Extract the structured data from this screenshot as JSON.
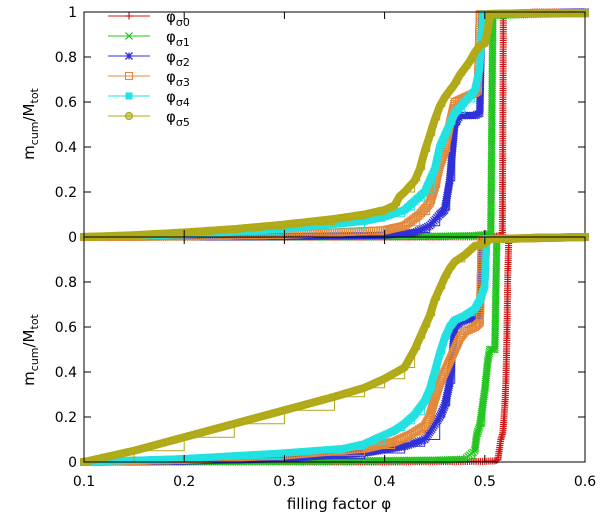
{
  "chart_data": {
    "type": "line",
    "xlabel": "filling factor φ",
    "ylabel_main": "m",
    "ylabel_sub1": "cum",
    "ylabel_sep": "/M",
    "ylabel_sub2": "tot",
    "xlim": [
      0.1,
      0.6
    ],
    "xticks": [
      0.1,
      0.2,
      0.3,
      0.4,
      0.5,
      0.6
    ],
    "xtick_labels": [
      "0.1",
      "0.2",
      "0.3",
      "0.4",
      "0.5",
      "0.6"
    ],
    "panels": [
      {
        "name": "top",
        "ylim": [
          0,
          1
        ],
        "yticks": [
          0,
          0.2,
          0.4,
          0.6,
          0.8,
          1
        ],
        "ytick_labels": [
          "0",
          "0.2",
          "0.4",
          "0.6",
          "0.8",
          "1"
        ],
        "series": [
          {
            "key": "s0",
            "points": [
              [
                0.1,
                0
              ],
              [
                0.3,
                0
              ],
              [
                0.45,
                0
              ],
              [
                0.5,
                0.001
              ],
              [
                0.51,
                0.003
              ],
              [
                0.515,
                0.006
              ],
              [
                0.5175,
                0.01
              ],
              [
                0.5185,
                0.99
              ],
              [
                0.55,
                1.0
              ],
              [
                0.6,
                1.0
              ]
            ]
          },
          {
            "key": "s1",
            "points": [
              [
                0.1,
                0
              ],
              [
                0.3,
                0.001
              ],
              [
                0.45,
                0.003
              ],
              [
                0.49,
                0.006
              ],
              [
                0.5,
                0.01
              ],
              [
                0.506,
                0.015
              ],
              [
                0.508,
                0.985
              ],
              [
                0.55,
                0.99
              ],
              [
                0.6,
                0.995
              ]
            ]
          },
          {
            "key": "s2",
            "points": [
              [
                0.1,
                0
              ],
              [
                0.3,
                0.002
              ],
              [
                0.4,
                0.008
              ],
              [
                0.43,
                0.02
              ],
              [
                0.445,
                0.05
              ],
              [
                0.455,
                0.1
              ],
              [
                0.46,
                0.12
              ],
              [
                0.465,
                0.25
              ],
              [
                0.47,
                0.5
              ],
              [
                0.475,
                0.54
              ],
              [
                0.48,
                0.54
              ],
              [
                0.49,
                0.54
              ],
              [
                0.495,
                0.55
              ],
              [
                0.497,
                0.99
              ],
              [
                0.55,
                0.995
              ],
              [
                0.6,
                1.0
              ]
            ]
          },
          {
            "key": "s3",
            "points": [
              [
                0.1,
                0
              ],
              [
                0.2,
                0.003
              ],
              [
                0.3,
                0.01
              ],
              [
                0.4,
                0.03
              ],
              [
                0.42,
                0.05
              ],
              [
                0.435,
                0.1
              ],
              [
                0.445,
                0.15
              ],
              [
                0.45,
                0.22
              ],
              [
                0.455,
                0.32
              ],
              [
                0.46,
                0.38
              ],
              [
                0.465,
                0.5
              ],
              [
                0.47,
                0.6
              ],
              [
                0.48,
                0.62
              ],
              [
                0.49,
                0.64
              ],
              [
                0.493,
                0.65
              ],
              [
                0.495,
                0.99
              ],
              [
                0.55,
                0.995
              ],
              [
                0.6,
                0.995
              ]
            ]
          },
          {
            "key": "s4",
            "points": [
              [
                0.1,
                0
              ],
              [
                0.2,
                0.01
              ],
              [
                0.3,
                0.035
              ],
              [
                0.38,
                0.07
              ],
              [
                0.4,
                0.09
              ],
              [
                0.42,
                0.12
              ],
              [
                0.43,
                0.16
              ],
              [
                0.44,
                0.2
              ],
              [
                0.45,
                0.3
              ],
              [
                0.455,
                0.4
              ],
              [
                0.46,
                0.45
              ],
              [
                0.465,
                0.5
              ],
              [
                0.47,
                0.55
              ],
              [
                0.48,
                0.6
              ],
              [
                0.49,
                0.65
              ],
              [
                0.495,
                0.75
              ],
              [
                0.498,
                0.99
              ],
              [
                0.55,
                0.995
              ],
              [
                0.6,
                0.995
              ]
            ]
          },
          {
            "key": "s5",
            "points": [
              [
                0.1,
                0
              ],
              [
                0.15,
                0.008
              ],
              [
                0.2,
                0.02
              ],
              [
                0.25,
                0.035
              ],
              [
                0.3,
                0.055
              ],
              [
                0.35,
                0.08
              ],
              [
                0.38,
                0.1
              ],
              [
                0.4,
                0.12
              ],
              [
                0.41,
                0.14
              ],
              [
                0.415,
                0.18
              ],
              [
                0.42,
                0.2
              ],
              [
                0.43,
                0.25
              ],
              [
                0.435,
                0.3
              ],
              [
                0.44,
                0.38
              ],
              [
                0.445,
                0.45
              ],
              [
                0.45,
                0.52
              ],
              [
                0.455,
                0.58
              ],
              [
                0.46,
                0.62
              ],
              [
                0.465,
                0.65
              ],
              [
                0.47,
                0.68
              ],
              [
                0.475,
                0.72
              ],
              [
                0.48,
                0.75
              ],
              [
                0.485,
                0.78
              ],
              [
                0.49,
                0.82
              ],
              [
                0.495,
                0.85
              ],
              [
                0.5,
                0.86
              ],
              [
                0.503,
                0.92
              ],
              [
                0.505,
                0.99
              ],
              [
                0.55,
                0.995
              ],
              [
                0.6,
                0.995
              ]
            ]
          }
        ]
      },
      {
        "name": "bottom",
        "ylim": [
          0,
          1
        ],
        "yticks": [
          0,
          0.2,
          0.4,
          0.6,
          0.8
        ],
        "ytick_labels": [
          "0",
          "0.2",
          "0.4",
          "0.6",
          "0.8"
        ],
        "series": [
          {
            "key": "s0",
            "points": [
              [
                0.1,
                0
              ],
              [
                0.4,
                0
              ],
              [
                0.5,
                0.003
              ],
              [
                0.51,
                0.005
              ],
              [
                0.513,
                0.01
              ],
              [
                0.516,
                0.1
              ],
              [
                0.518,
                0.13
              ],
              [
                0.52,
                0.25
              ],
              [
                0.521,
                0.35
              ],
              [
                0.522,
                0.55
              ],
              [
                0.523,
                0.85
              ],
              [
                0.524,
                0.99
              ],
              [
                0.55,
                1.0
              ],
              [
                0.6,
                1.0
              ]
            ]
          },
          {
            "key": "s1",
            "points": [
              [
                0.1,
                0
              ],
              [
                0.3,
                0.002
              ],
              [
                0.45,
                0.008
              ],
              [
                0.48,
                0.012
              ],
              [
                0.49,
                0.05
              ],
              [
                0.492,
                0.12
              ],
              [
                0.495,
                0.16
              ],
              [
                0.5,
                0.32
              ],
              [
                0.503,
                0.45
              ],
              [
                0.505,
                0.5
              ],
              [
                0.51,
                0.5
              ],
              [
                0.512,
                0.99
              ],
              [
                0.55,
                0.995
              ],
              [
                0.6,
                1.0
              ]
            ]
          },
          {
            "key": "s2",
            "points": [
              [
                0.1,
                0
              ],
              [
                0.2,
                0.004
              ],
              [
                0.3,
                0.015
              ],
              [
                0.38,
                0.04
              ],
              [
                0.42,
                0.07
              ],
              [
                0.44,
                0.1
              ],
              [
                0.455,
                0.2
              ],
              [
                0.46,
                0.25
              ],
              [
                0.465,
                0.35
              ],
              [
                0.47,
                0.6
              ],
              [
                0.475,
                0.62
              ],
              [
                0.48,
                0.63
              ],
              [
                0.49,
                0.64
              ],
              [
                0.495,
                0.65
              ],
              [
                0.497,
                0.99
              ],
              [
                0.55,
                0.995
              ],
              [
                0.6,
                1.0
              ]
            ]
          },
          {
            "key": "s3",
            "points": [
              [
                0.1,
                0
              ],
              [
                0.2,
                0.01
              ],
              [
                0.3,
                0.03
              ],
              [
                0.38,
                0.06
              ],
              [
                0.41,
                0.09
              ],
              [
                0.425,
                0.12
              ],
              [
                0.44,
                0.16
              ],
              [
                0.445,
                0.2
              ],
              [
                0.45,
                0.28
              ],
              [
                0.455,
                0.35
              ],
              [
                0.46,
                0.4
              ],
              [
                0.465,
                0.45
              ],
              [
                0.47,
                0.5
              ],
              [
                0.475,
                0.55
              ],
              [
                0.48,
                0.58
              ],
              [
                0.49,
                0.6
              ],
              [
                0.495,
                0.62
              ],
              [
                0.497,
                0.99
              ],
              [
                0.55,
                0.995
              ],
              [
                0.6,
                1.0
              ]
            ]
          },
          {
            "key": "s4",
            "points": [
              [
                0.1,
                0
              ],
              [
                0.2,
                0.015
              ],
              [
                0.3,
                0.04
              ],
              [
                0.36,
                0.06
              ],
              [
                0.38,
                0.08
              ],
              [
                0.4,
                0.12
              ],
              [
                0.41,
                0.14
              ],
              [
                0.42,
                0.17
              ],
              [
                0.43,
                0.21
              ],
              [
                0.44,
                0.27
              ],
              [
                0.445,
                0.32
              ],
              [
                0.45,
                0.4
              ],
              [
                0.455,
                0.48
              ],
              [
                0.46,
                0.55
              ],
              [
                0.465,
                0.6
              ],
              [
                0.47,
                0.63
              ],
              [
                0.48,
                0.65
              ],
              [
                0.49,
                0.68
              ],
              [
                0.495,
                0.72
              ],
              [
                0.5,
                0.78
              ],
              [
                0.502,
                0.99
              ],
              [
                0.55,
                0.995
              ],
              [
                0.6,
                1.0
              ]
            ]
          },
          {
            "key": "s5",
            "points": [
              [
                0.1,
                0
              ],
              [
                0.15,
                0.05
              ],
              [
                0.2,
                0.11
              ],
              [
                0.25,
                0.17
              ],
              [
                0.3,
                0.23
              ],
              [
                0.35,
                0.29
              ],
              [
                0.38,
                0.33
              ],
              [
                0.4,
                0.37
              ],
              [
                0.42,
                0.42
              ],
              [
                0.43,
                0.5
              ],
              [
                0.435,
                0.55
              ],
              [
                0.44,
                0.6
              ],
              [
                0.445,
                0.65
              ],
              [
                0.45,
                0.72
              ],
              [
                0.455,
                0.77
              ],
              [
                0.46,
                0.82
              ],
              [
                0.465,
                0.86
              ],
              [
                0.47,
                0.89
              ],
              [
                0.48,
                0.92
              ],
              [
                0.485,
                0.94
              ],
              [
                0.49,
                0.96
              ],
              [
                0.5,
                0.97
              ],
              [
                0.505,
                0.99
              ],
              [
                0.55,
                0.995
              ],
              [
                0.6,
                1.0
              ]
            ]
          }
        ]
      }
    ],
    "legend_position": "top-left",
    "legend": [
      {
        "key": "s0",
        "label": "φ",
        "sub": "σ0",
        "color": "#d41818",
        "marker": "plus"
      },
      {
        "key": "s1",
        "label": "φ",
        "sub": "σ1",
        "color": "#22c41e",
        "marker": "cross"
      },
      {
        "key": "s2",
        "label": "φ",
        "sub": "σ2",
        "color": "#3030d8",
        "marker": "star"
      },
      {
        "key": "s3",
        "label": "φ",
        "sub": "σ3",
        "color": "#e3883a",
        "marker": "open-square"
      },
      {
        "key": "s4",
        "label": "φ",
        "sub": "σ4",
        "color": "#22e1e1",
        "marker": "filled-square"
      },
      {
        "key": "s5",
        "label": "φ",
        "sub": "σ5",
        "color": "#b0aa18",
        "marker": "circle"
      }
    ]
  }
}
